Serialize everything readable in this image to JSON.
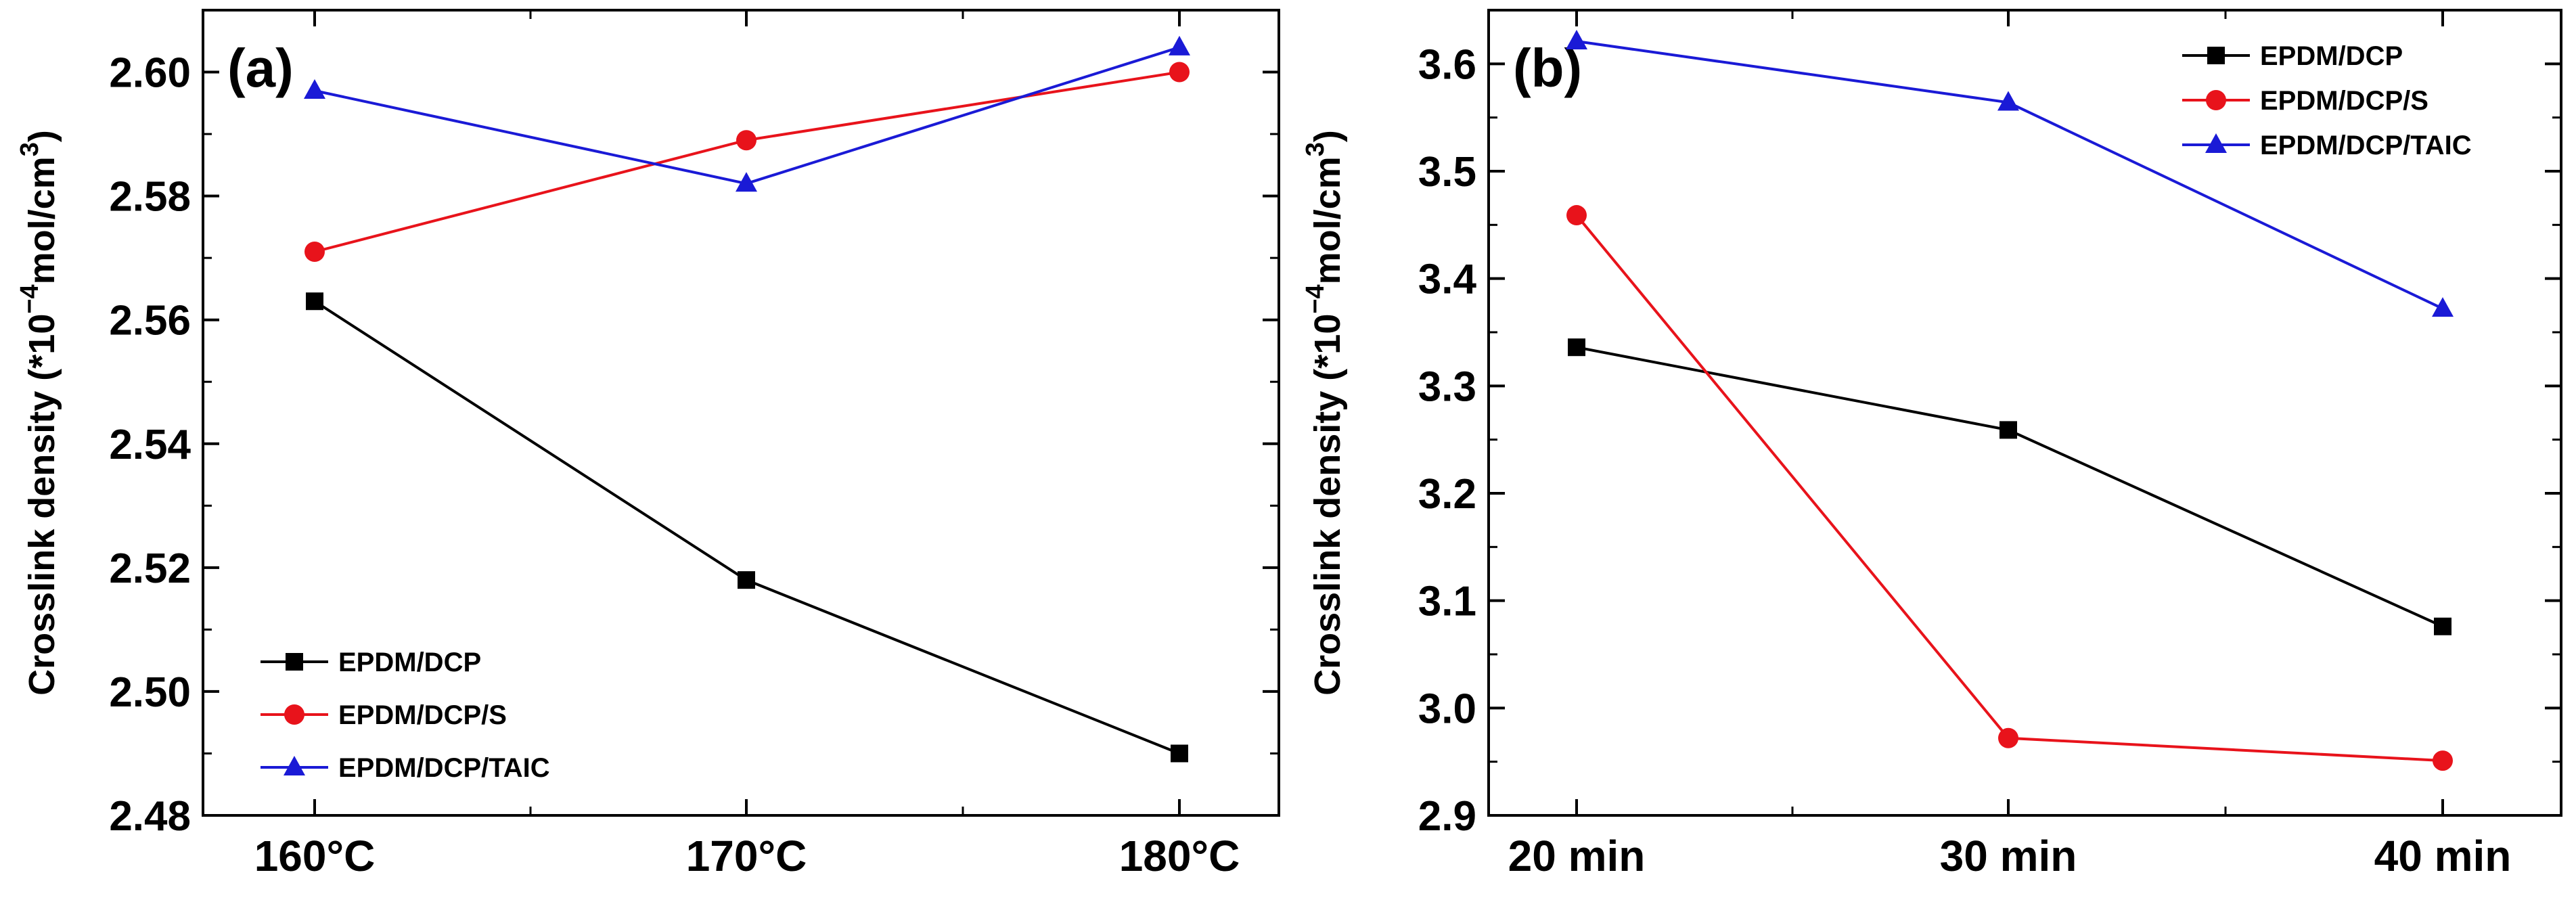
{
  "chart_data": [
    {
      "type": "line",
      "panel_label": "(a)",
      "categories": [
        "160°C",
        "170°C",
        "180°C"
      ],
      "ylabel": {
        "main": "Crosslink density (*10",
        "exp": "−4",
        "mid": "mol/cm",
        "exp2": "3",
        "close": ")"
      },
      "ylim": [
        2.48,
        2.61
      ],
      "yticks": [
        2.48,
        2.5,
        2.52,
        2.54,
        2.56,
        2.58,
        2.6
      ],
      "ytick_decimals": 2,
      "legend_position": "bottom-left",
      "series": [
        {
          "name": "EPDM/DCP",
          "color": "#000000",
          "marker": "square",
          "values": [
            2.563,
            2.518,
            2.49
          ]
        },
        {
          "name": "EPDM/DCP/S",
          "color": "#e8131b",
          "marker": "circle",
          "values": [
            2.571,
            2.589,
            2.6
          ]
        },
        {
          "name": "EPDM/DCP/TAIC",
          "color": "#1a1ad6",
          "marker": "triangle",
          "values": [
            2.597,
            2.582,
            2.604
          ]
        }
      ]
    },
    {
      "type": "line",
      "panel_label": "(b)",
      "categories": [
        "20 min",
        "30 min",
        "40 min"
      ],
      "ylabel": {
        "main": "Crosslink density (*10",
        "exp": "−4",
        "mid": "mol/cm",
        "exp2": "3",
        "close": ")"
      },
      "ylim": [
        2.9,
        3.65
      ],
      "yticks": [
        2.9,
        3.0,
        3.1,
        3.2,
        3.3,
        3.4,
        3.5,
        3.6
      ],
      "ytick_decimals": 1,
      "legend_position": "top-right",
      "series": [
        {
          "name": "EPDM/DCP",
          "color": "#000000",
          "marker": "square",
          "values": [
            3.336,
            3.259,
            3.076
          ]
        },
        {
          "name": "EPDM/DCP/S",
          "color": "#e8131b",
          "marker": "circle",
          "values": [
            3.459,
            2.972,
            2.951
          ]
        },
        {
          "name": "EPDM/DCP/TAIC",
          "color": "#1a1ad6",
          "marker": "triangle",
          "values": [
            3.621,
            3.564,
            3.372
          ]
        }
      ]
    }
  ]
}
